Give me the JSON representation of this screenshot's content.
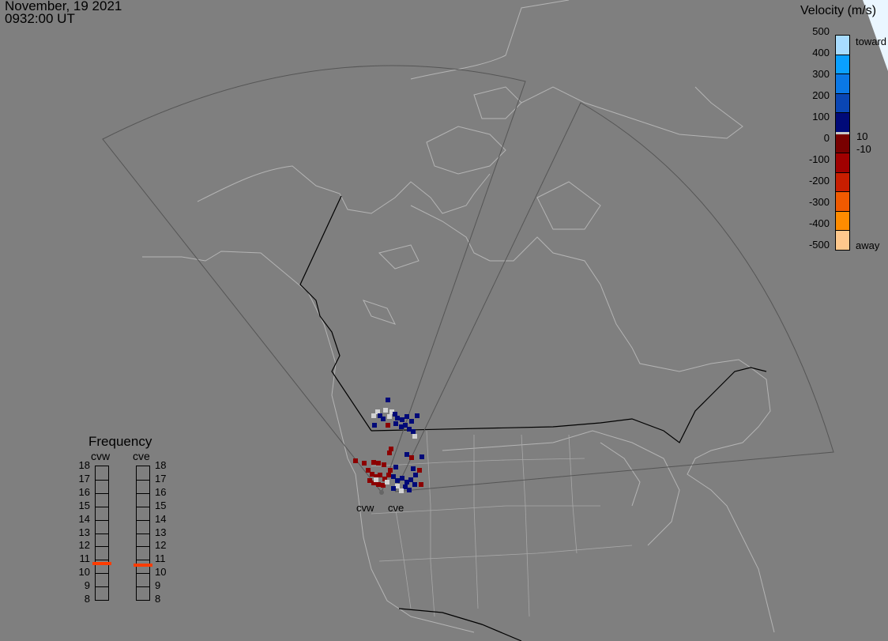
{
  "header": {
    "date": "November, 19 2021",
    "time": "0932:00 UT"
  },
  "velocity_scale": {
    "title": "Velocity (m/s)",
    "ticks": [
      "500",
      "400",
      "300",
      "200",
      "100",
      "0",
      "-100",
      "-200",
      "-300",
      "-400",
      "-500"
    ],
    "extra_labels": {
      "toward": "toward",
      "away": "away",
      "pos_threshold": "10",
      "neg_threshold": "-10"
    },
    "colors_top_to_bottom": [
      "#a8dcff",
      "#0aa0ff",
      "#0a78e6",
      "#0a46b4",
      "#000a78",
      "#c8c8c8",
      "#780000",
      "#a00000",
      "#c81e00",
      "#f05a00",
      "#ff8c00",
      "#ffc88c"
    ]
  },
  "frequency": {
    "title": "Frequency",
    "ticks": [
      "18",
      "17",
      "16",
      "15",
      "14",
      "13",
      "12",
      "11",
      "10",
      "9",
      "8"
    ],
    "radars": [
      {
        "name": "cvw",
        "value_mhz": 10.65
      },
      {
        "name": "cve",
        "value_mhz": 10.55
      }
    ],
    "indicator_color": "#ff3c00"
  },
  "map": {
    "radar_labels": [
      "cvw",
      "cve"
    ],
    "colors": {
      "background": "#7f7f7f",
      "coast": "#b4b4b4",
      "fov": "#555555",
      "border": "#000000"
    }
  }
}
